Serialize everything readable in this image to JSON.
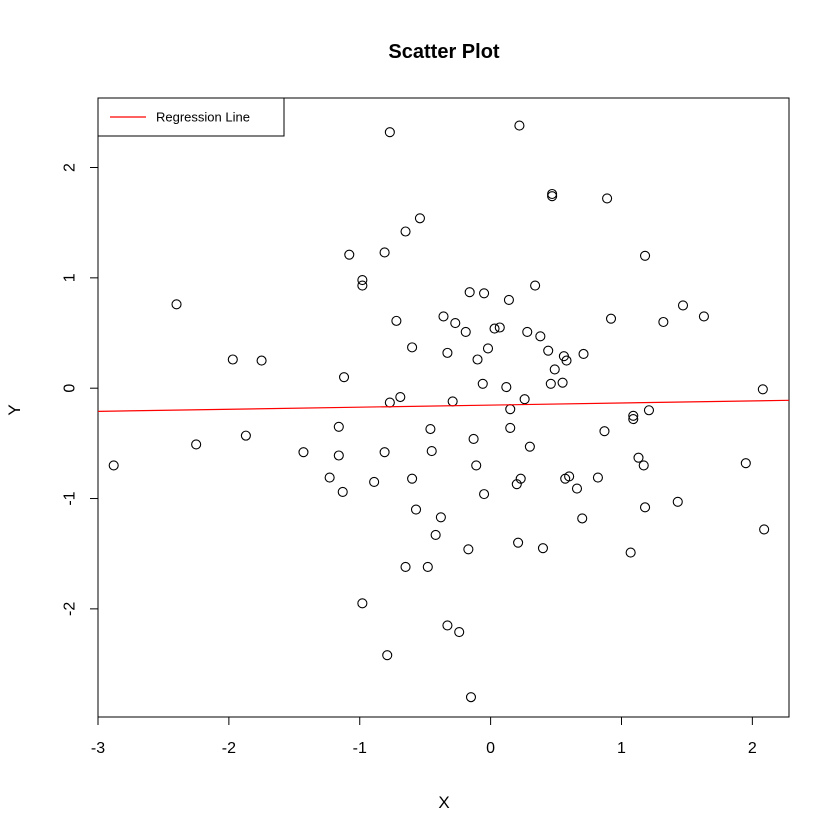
{
  "chart_data": {
    "type": "scatter",
    "title": "Scatter Plot",
    "xlabel": "X",
    "ylabel": "Y",
    "xlim": [
      -3.0,
      2.28
    ],
    "ylim": [
      -2.98,
      2.63
    ],
    "x_ticks": [
      -3,
      -2,
      -1,
      0,
      1,
      2
    ],
    "y_ticks": [
      -2,
      -1,
      0,
      1,
      2
    ],
    "grid": false,
    "legend": {
      "placement": "top-left",
      "entries": [
        {
          "label": "Regression Line",
          "color": "#ff0000"
        }
      ]
    },
    "point_color": "#000000",
    "regression_line": {
      "name": "Regression Line",
      "color": "#ff0000",
      "x": [
        -3.0,
        2.28
      ],
      "y": [
        -0.21,
        -0.11
      ]
    },
    "points": [
      {
        "x": -2.88,
        "y": -0.7
      },
      {
        "x": -2.4,
        "y": 0.76
      },
      {
        "x": -2.25,
        "y": -0.51
      },
      {
        "x": -1.97,
        "y": 0.26
      },
      {
        "x": -1.87,
        "y": -0.43
      },
      {
        "x": -1.75,
        "y": 0.25
      },
      {
        "x": -1.43,
        "y": -0.58
      },
      {
        "x": -1.23,
        "y": -0.81
      },
      {
        "x": -1.16,
        "y": -0.35
      },
      {
        "x": -1.16,
        "y": -0.61
      },
      {
        "x": -1.13,
        "y": -0.94
      },
      {
        "x": -1.12,
        "y": 0.1
      },
      {
        "x": -1.08,
        "y": 1.21
      },
      {
        "x": -0.98,
        "y": 0.98
      },
      {
        "x": -0.98,
        "y": 0.93
      },
      {
        "x": -0.98,
        "y": -1.95
      },
      {
        "x": -0.89,
        "y": -0.85
      },
      {
        "x": -0.81,
        "y": 1.23
      },
      {
        "x": -0.81,
        "y": -0.58
      },
      {
        "x": -0.79,
        "y": -2.42
      },
      {
        "x": -0.77,
        "y": 2.32
      },
      {
        "x": -0.77,
        "y": -0.13
      },
      {
        "x": -0.72,
        "y": 0.61
      },
      {
        "x": -0.69,
        "y": -0.08
      },
      {
        "x": -0.65,
        "y": 1.42
      },
      {
        "x": -0.65,
        "y": -1.62
      },
      {
        "x": -0.6,
        "y": 0.37
      },
      {
        "x": -0.6,
        "y": -0.82
      },
      {
        "x": -0.57,
        "y": -1.1
      },
      {
        "x": -0.54,
        "y": 1.54
      },
      {
        "x": -0.48,
        "y": -1.62
      },
      {
        "x": -0.46,
        "y": -0.37
      },
      {
        "x": -0.45,
        "y": -0.57
      },
      {
        "x": -0.42,
        "y": -1.33
      },
      {
        "x": -0.38,
        "y": -1.17
      },
      {
        "x": -0.36,
        "y": 0.65
      },
      {
        "x": -0.33,
        "y": 0.32
      },
      {
        "x": -0.33,
        "y": -2.15
      },
      {
        "x": -0.29,
        "y": -0.12
      },
      {
        "x": -0.27,
        "y": 0.59
      },
      {
        "x": -0.24,
        "y": -2.21
      },
      {
        "x": -0.19,
        "y": 0.51
      },
      {
        "x": -0.17,
        "y": -1.46
      },
      {
        "x": -0.16,
        "y": 0.87
      },
      {
        "x": -0.15,
        "y": -2.8
      },
      {
        "x": -0.13,
        "y": -0.46
      },
      {
        "x": -0.11,
        "y": -0.7
      },
      {
        "x": -0.1,
        "y": 0.26
      },
      {
        "x": -0.06,
        "y": 0.04
      },
      {
        "x": -0.05,
        "y": 0.86
      },
      {
        "x": -0.05,
        "y": -0.96
      },
      {
        "x": -0.02,
        "y": 0.36
      },
      {
        "x": 0.03,
        "y": 0.54
      },
      {
        "x": 0.07,
        "y": 0.55
      },
      {
        "x": 0.12,
        "y": 0.01
      },
      {
        "x": 0.14,
        "y": 0.8
      },
      {
        "x": 0.15,
        "y": -0.19
      },
      {
        "x": 0.15,
        "y": -0.36
      },
      {
        "x": 0.2,
        "y": -0.87
      },
      {
        "x": 0.21,
        "y": -1.4
      },
      {
        "x": 0.22,
        "y": 2.38
      },
      {
        "x": 0.23,
        "y": -0.82
      },
      {
        "x": 0.26,
        "y": -0.1
      },
      {
        "x": 0.28,
        "y": 0.51
      },
      {
        "x": 0.3,
        "y": -0.53
      },
      {
        "x": 0.34,
        "y": 0.93
      },
      {
        "x": 0.38,
        "y": 0.47
      },
      {
        "x": 0.4,
        "y": -1.45
      },
      {
        "x": 0.44,
        "y": 0.34
      },
      {
        "x": 0.46,
        "y": 0.04
      },
      {
        "x": 0.47,
        "y": 1.76
      },
      {
        "x": 0.47,
        "y": 1.74
      },
      {
        "x": 0.49,
        "y": 0.17
      },
      {
        "x": 0.55,
        "y": 0.05
      },
      {
        "x": 0.56,
        "y": 0.29
      },
      {
        "x": 0.57,
        "y": -0.82
      },
      {
        "x": 0.58,
        "y": 0.25
      },
      {
        "x": 0.6,
        "y": -0.8
      },
      {
        "x": 0.66,
        "y": -0.91
      },
      {
        "x": 0.7,
        "y": -1.18
      },
      {
        "x": 0.71,
        "y": 0.31
      },
      {
        "x": 0.82,
        "y": -0.81
      },
      {
        "x": 0.87,
        "y": -0.39
      },
      {
        "x": 0.89,
        "y": 1.72
      },
      {
        "x": 0.92,
        "y": 0.63
      },
      {
        "x": 1.07,
        "y": -1.49
      },
      {
        "x": 1.09,
        "y": -0.25
      },
      {
        "x": 1.09,
        "y": -0.28
      },
      {
        "x": 1.13,
        "y": -0.63
      },
      {
        "x": 1.17,
        "y": -0.7
      },
      {
        "x": 1.18,
        "y": 1.2
      },
      {
        "x": 1.18,
        "y": -1.08
      },
      {
        "x": 1.21,
        "y": -0.2
      },
      {
        "x": 1.32,
        "y": 0.6
      },
      {
        "x": 1.43,
        "y": -1.03
      },
      {
        "x": 1.47,
        "y": 0.75
      },
      {
        "x": 1.63,
        "y": 0.65
      },
      {
        "x": 1.95,
        "y": -0.68
      },
      {
        "x": 2.08,
        "y": -0.01
      },
      {
        "x": 2.09,
        "y": -1.28
      }
    ]
  }
}
